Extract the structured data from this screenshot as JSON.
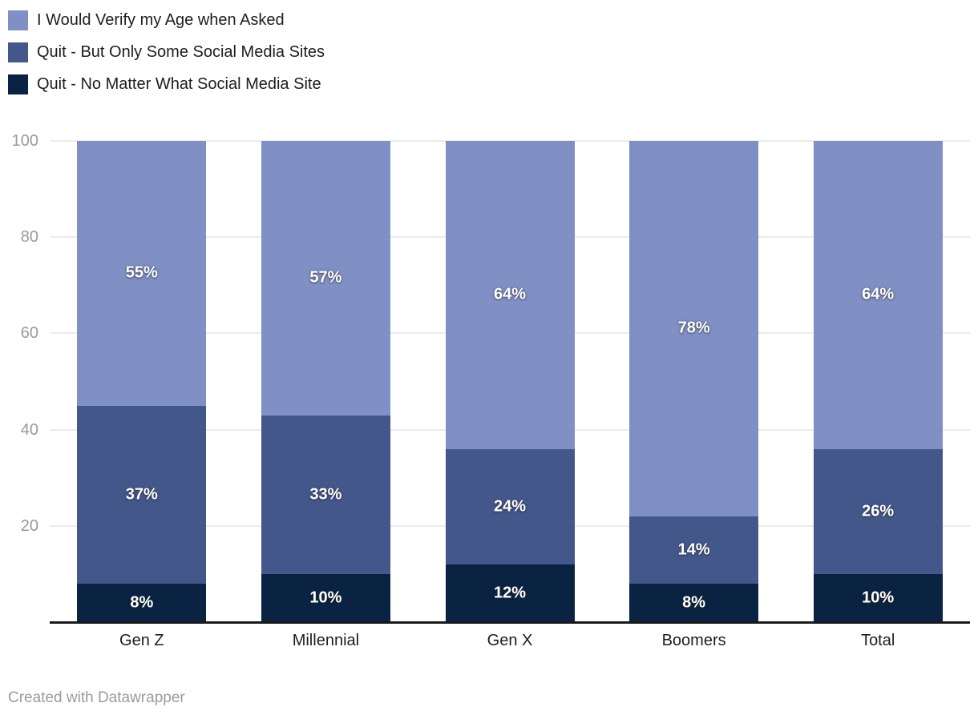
{
  "chart_data": {
    "type": "bar",
    "subtype": "stacked-column",
    "stacked": true,
    "categories": [
      "Gen Z",
      "Millennial",
      "Gen X",
      "Boomers",
      "Total"
    ],
    "series": [
      {
        "name": "I Would Verify my Age when Asked",
        "color": "#8090c4",
        "values": [
          55,
          57,
          64,
          78,
          64
        ]
      },
      {
        "name": "Quit - But Only Some Social Media Sites",
        "color": "#44578b",
        "values": [
          37,
          33,
          24,
          14,
          26
        ]
      },
      {
        "name": "Quit - No Matter What Social Media Site",
        "color": "#0a2342",
        "values": [
          8,
          10,
          12,
          8,
          10
        ]
      }
    ],
    "stack_order_bottom_to_top": [
      "Quit - No Matter What Social Media Site",
      "Quit - But Only Some Social Media Sites",
      "I Would Verify my Age when Asked"
    ],
    "value_suffix": "%",
    "ylim": [
      0,
      100
    ],
    "yticks": [
      20,
      40,
      60,
      80,
      100
    ],
    "grid": true,
    "legend_position": "top-left",
    "title": "",
    "xlabel": "",
    "ylabel": ""
  },
  "colors": {
    "background": "#ffffff",
    "axis_line": "#1a1a1a",
    "gridline": "#ececec",
    "tick_label": "#9a9a9a",
    "category_label": "#1d1d1d",
    "legend_label": "#1d1d1d",
    "value_label": "#ffffff",
    "footer": "#9b9b9b"
  },
  "footer": {
    "credit": "Created with Datawrapper"
  }
}
